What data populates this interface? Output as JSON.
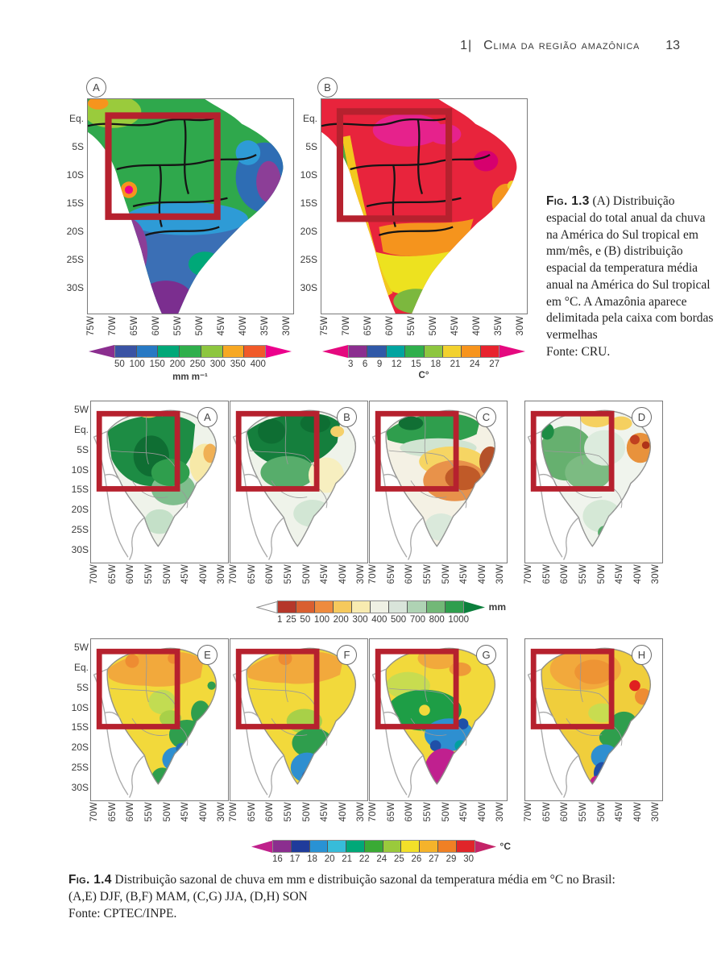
{
  "header": {
    "chapter": "1|",
    "title": "Clima da região amazônica",
    "page": "13"
  },
  "accent": {
    "amazon_box_color": "#B6212E"
  },
  "fig13": {
    "panels": [
      "A",
      "B"
    ],
    "y_ticks": [
      "Eq.",
      "5S",
      "10S",
      "15S",
      "20S",
      "25S",
      "30S"
    ],
    "x_ticks": [
      "75W",
      "70W",
      "65W",
      "60W",
      "55W",
      "50W",
      "45W",
      "40W",
      "35W",
      "30W"
    ],
    "precip_bar": {
      "ticks": [
        "50",
        "100",
        "150",
        "200",
        "250",
        "300",
        "350",
        "400"
      ],
      "unit": "mm m⁻¹",
      "segments": [
        "#3A53A4",
        "#2779C4",
        "#00A878",
        "#2FAF4C",
        "#8DC63F",
        "#F7A823",
        "#F15A29"
      ],
      "arrow_left": "#8B2E8F",
      "arrow_right": "#EC008C"
    },
    "temp_bar": {
      "ticks": [
        "3",
        "6",
        "9",
        "12",
        "15",
        "18",
        "21",
        "24",
        "27"
      ],
      "unit": "C°",
      "segments": [
        "#8B2E8F",
        "#3059A8",
        "#00A4A0",
        "#2FAF4C",
        "#8DC63F",
        "#F2D12E",
        "#F7941D",
        "#E8232E"
      ],
      "arrow_left": "#E5097F",
      "arrow_right": "#E5097F"
    },
    "caption_lead": "Fig. 1.3",
    "caption": "(A) Distribuição espacial do total anual da chuva na América do Sul tropical em mm/mês, e (B) distribuição espacial da temperatura média anual na América do Sul tropical em °C. A Amazônia aparece delimitada pela caixa com bordas vermelhas",
    "source": "Fonte: CRU."
  },
  "fig14": {
    "panels_row1": [
      "A",
      "B",
      "C",
      "D"
    ],
    "panels_row2": [
      "E",
      "F",
      "G",
      "H"
    ],
    "y_ticks": [
      "5W",
      "Eq.",
      "5S",
      "10S",
      "15S",
      "20S",
      "25S",
      "30S"
    ],
    "x_ticks": [
      "70W",
      "65W",
      "60W",
      "55W",
      "50W",
      "45W",
      "40W",
      "30W"
    ],
    "mm_bar": {
      "ticks": [
        "1",
        "25",
        "50",
        "100",
        "200",
        "300",
        "400",
        "500",
        "700",
        "800",
        "1000"
      ],
      "unit": "mm",
      "segments": [
        "#B5372A",
        "#D95F30",
        "#EE8B3E",
        "#F6C95C",
        "#F8EBB0",
        "#EFF0E4",
        "#D9E4DA",
        "#AFD3B4",
        "#72B877",
        "#2F9E4D"
      ],
      "arrow_left": "#FFFFFF",
      "arrow_right": "#0C7F3C"
    },
    "c_bar": {
      "ticks": [
        "16",
        "17",
        "18",
        "20",
        "21",
        "22",
        "24",
        "25",
        "26",
        "27",
        "29",
        "30"
      ],
      "unit": "°C",
      "segments": [
        "#8B2E8F",
        "#1F3B9B",
        "#2992D4",
        "#37BCD9",
        "#00A878",
        "#3AAA35",
        "#9ACA3C",
        "#F2E029",
        "#F5B32B",
        "#F08024",
        "#E0252A"
      ],
      "arrow_left": "#C0218C",
      "arrow_right": "#C42468"
    },
    "caption_lead": "Fig. 1.4",
    "caption_line1": "Distribuição sazonal de chuva em mm e distribuição sazonal da temperatura média em °C no Brasil:",
    "caption_line2": "(A,E) DJF, (B,F) MAM, (C,G) JJA, (D,H) SON",
    "source": "Fonte: CPTEC/INPE."
  }
}
